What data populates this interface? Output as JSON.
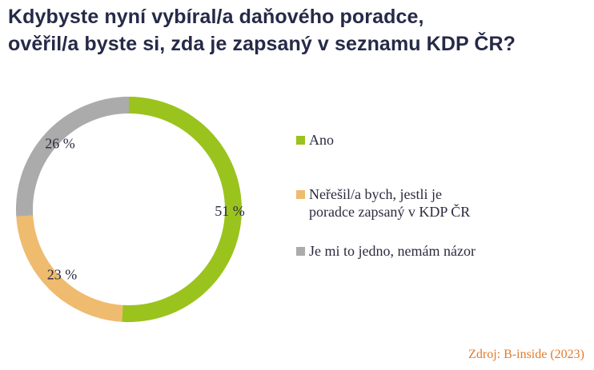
{
  "title_lines": [
    "Kdybyste nyní vybíral/a daňového poradce,",
    "ověřil/a byste si, zda je zapsaný v seznamu KDP ČR?"
  ],
  "source": "Zdroj: B-inside (2023)",
  "chart_data": {
    "type": "pie",
    "variant": "donut",
    "title": "Kdybyste nyní vybíral/a daňového poradce, ověřil/a byste si, zda je zapsaný v seznamu KDP ČR?",
    "categories": [
      "Ano",
      "Neřešil/a bych, jestli je poradce zapsaný v KDP ČR",
      "Je mi to jedno, nemám názor"
    ],
    "values": [
      51,
      23,
      26
    ],
    "data_labels": [
      "51 %",
      "23 %",
      "26 %"
    ],
    "colors": [
      "#9bc31e",
      "#efbb6f",
      "#ababab"
    ],
    "start": "12 o'clock",
    "direction": "clockwise",
    "legend_position": "right"
  },
  "legend": [
    {
      "label_lines": [
        "Ano"
      ],
      "color": "#9bc31e"
    },
    {
      "label_lines": [
        "Neřešil/a bych, jestli je",
        "poradce zapsaný v KDP ČR"
      ],
      "color": "#efbb6f"
    },
    {
      "label_lines": [
        "Je mi to jedno, nemám názor"
      ],
      "color": "#ababab"
    }
  ]
}
